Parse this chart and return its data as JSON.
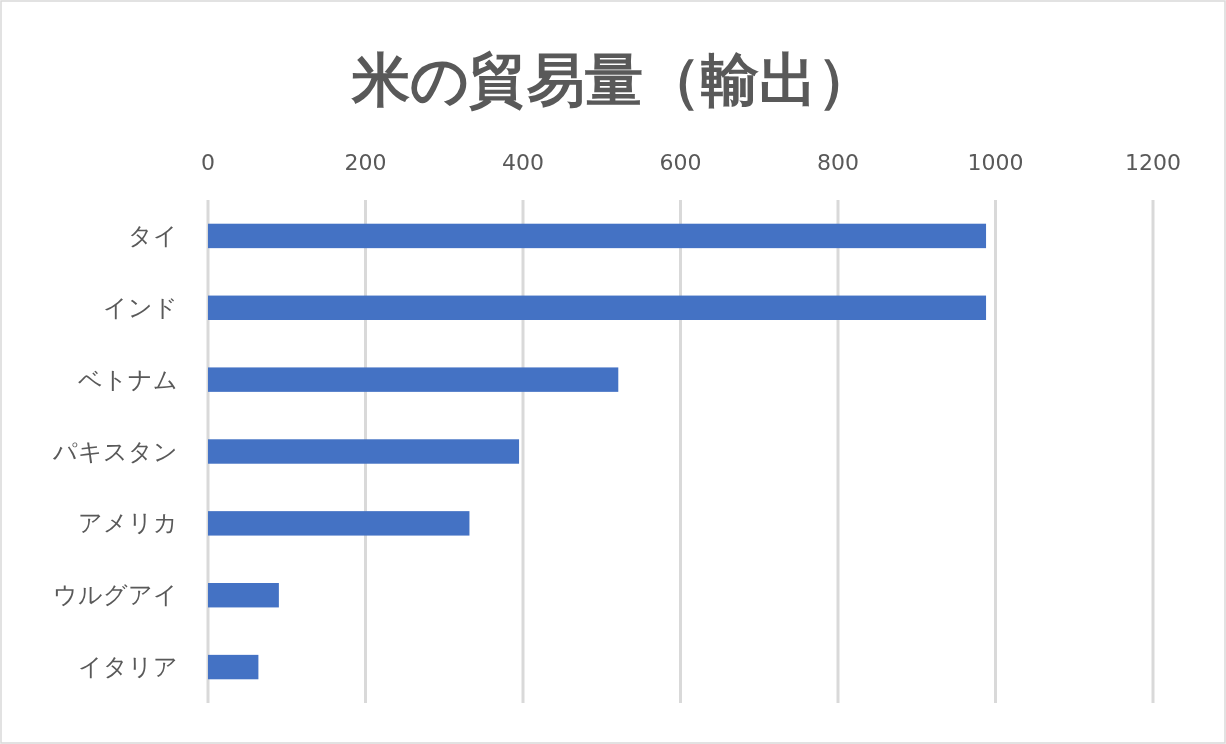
{
  "chart_data": {
    "type": "bar",
    "orientation": "horizontal",
    "title": "米の貿易量（輸出）",
    "categories": [
      "タイ",
      "インド",
      "ベトナム",
      "パキスタン",
      "アメリカ",
      "ウルグアイ",
      "イタリア"
    ],
    "values": [
      988,
      988,
      521,
      395,
      332,
      90,
      64
    ],
    "color": "#4472c4",
    "xlim": [
      0,
      1200
    ],
    "xticks": [
      0,
      200,
      400,
      600,
      800,
      1000,
      1200
    ],
    "grid": "x"
  }
}
